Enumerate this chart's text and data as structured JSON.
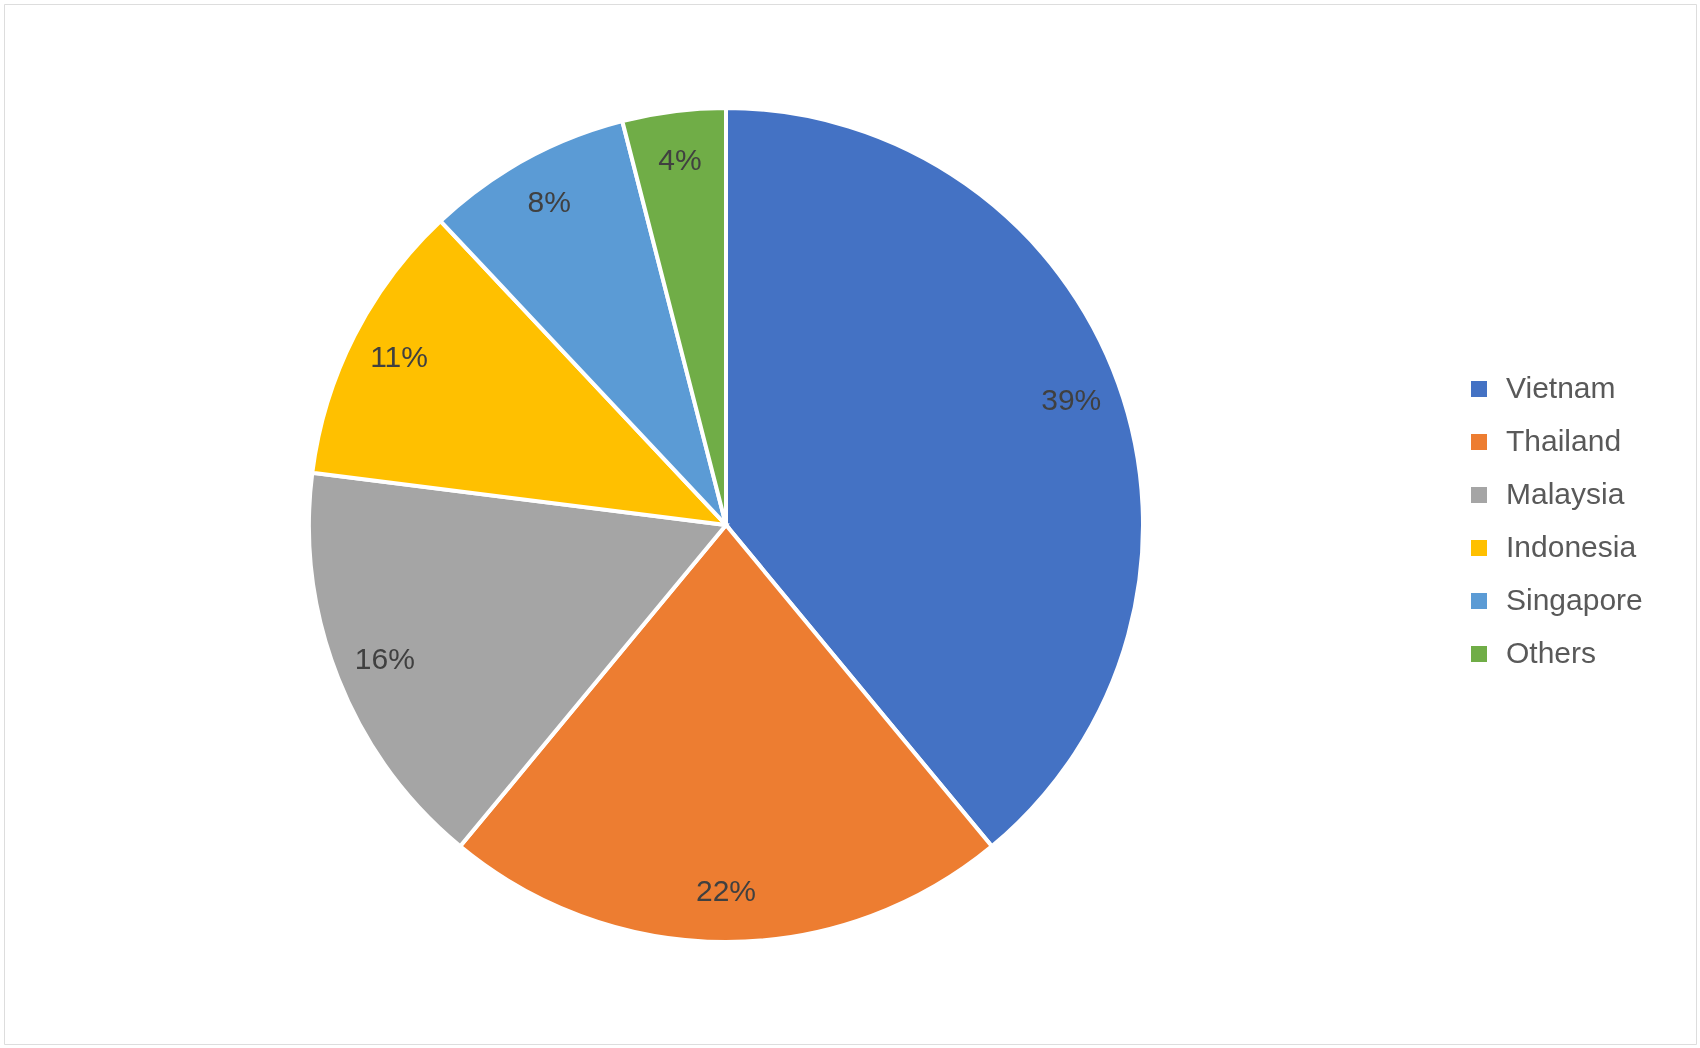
{
  "chart_data": {
    "type": "pie",
    "categories": [
      "Vietnam",
      "Thailand",
      "Malaysia",
      "Indonesia",
      "Singapore",
      "Others"
    ],
    "values": [
      39,
      22,
      16,
      11,
      8,
      4
    ],
    "colors": [
      "#4472c4",
      "#ed7d31",
      "#a5a5a5",
      "#ffc000",
      "#5b9bd5",
      "#70ad47"
    ],
    "value_labels": [
      "39%",
      "22%",
      "16%",
      "11%",
      "8%",
      "4%"
    ],
    "legend": "right"
  }
}
